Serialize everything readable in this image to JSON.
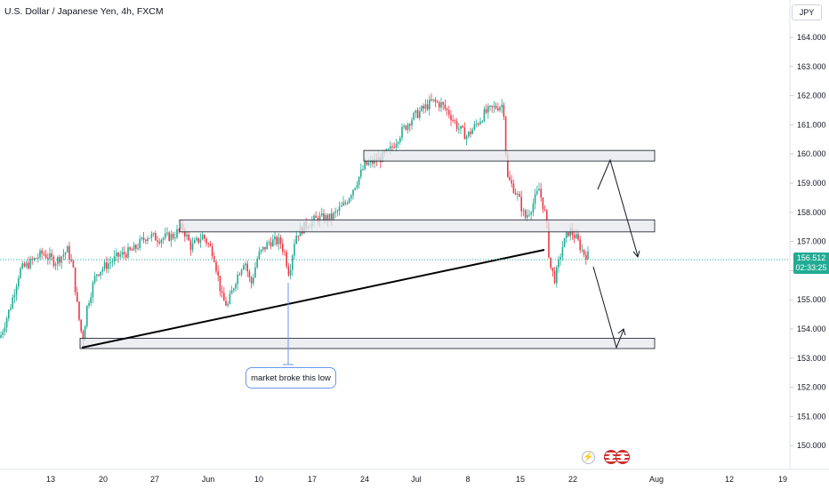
{
  "header": {
    "title": "U.S. Dollar / Japanese Yen, 4h, FXCM"
  },
  "currency_badge": "JPY",
  "price_tag": {
    "price": "156.512",
    "countdown": "02:33:25"
  },
  "annotation": {
    "text": "market broke this low"
  },
  "colors": {
    "up": "#22ab94",
    "down": "#f23645",
    "accent": "#2962ff",
    "trendline": "#000000"
  },
  "icons": [
    "lightning-icon",
    "us-flag-icon",
    "us-flag-icon"
  ],
  "chart_data": {
    "type": "candlestick",
    "symbol": "U.S. Dollar / Japanese Yen",
    "interval": "4h",
    "source": "FXCM",
    "ylim": [
      149.7,
      164.6
    ],
    "yticks": [
      "164.000",
      "163.000",
      "162.000",
      "161.000",
      "160.000",
      "159.000",
      "158.000",
      "157.000",
      "156.000",
      "155.000",
      "154.000",
      "153.000",
      "152.000",
      "151.000",
      "150.000"
    ],
    "xticks": [
      "13",
      "20",
      "27",
      "Jun",
      "10",
      "17",
      "24",
      "Jul",
      "8",
      "15",
      "22",
      "Aug",
      "12",
      "19"
    ],
    "path": [
      [
        0,
        153.7
      ],
      [
        12,
        154.8
      ],
      [
        22,
        156.0
      ],
      [
        35,
        156.3
      ],
      [
        48,
        156.6
      ],
      [
        62,
        156.3
      ],
      [
        76,
        156.7
      ],
      [
        82,
        156.1
      ],
      [
        88,
        154.5
      ],
      [
        93,
        153.6
      ],
      [
        98,
        154.8
      ],
      [
        108,
        155.9
      ],
      [
        120,
        156.2
      ],
      [
        133,
        156.5
      ],
      [
        150,
        156.7
      ],
      [
        165,
        157.2
      ],
      [
        180,
        157.1
      ],
      [
        195,
        157.2
      ],
      [
        205,
        157.5
      ],
      [
        215,
        156.8
      ],
      [
        228,
        157.2
      ],
      [
        240,
        156.6
      ],
      [
        250,
        155.0
      ],
      [
        256,
        154.8
      ],
      [
        265,
        155.7
      ],
      [
        275,
        156.4
      ],
      [
        282,
        155.5
      ],
      [
        290,
        156.5
      ],
      [
        303,
        157.0
      ],
      [
        315,
        157.0
      ],
      [
        320,
        156.6
      ],
      [
        325,
        155.9
      ],
      [
        332,
        157.2
      ],
      [
        345,
        157.6
      ],
      [
        358,
        157.8
      ],
      [
        372,
        157.8
      ],
      [
        388,
        158.3
      ],
      [
        400,
        159.0
      ],
      [
        410,
        159.6
      ],
      [
        425,
        159.8
      ],
      [
        438,
        160.1
      ],
      [
        450,
        160.7
      ],
      [
        462,
        161.2
      ],
      [
        474,
        161.5
      ],
      [
        486,
        161.8
      ],
      [
        496,
        161.7
      ],
      [
        505,
        161.4
      ],
      [
        515,
        160.9
      ],
      [
        525,
        160.6
      ],
      [
        535,
        161.0
      ],
      [
        545,
        161.4
      ],
      [
        556,
        161.6
      ],
      [
        566,
        161.7
      ],
      [
        570,
        159.2
      ],
      [
        578,
        158.8
      ],
      [
        584,
        158.4
      ],
      [
        590,
        157.8
      ],
      [
        598,
        158.2
      ],
      [
        606,
        158.8
      ],
      [
        614,
        157.8
      ],
      [
        618,
        156.2
      ],
      [
        624,
        155.7
      ],
      [
        632,
        156.8
      ],
      [
        640,
        157.4
      ],
      [
        648,
        157.1
      ],
      [
        656,
        156.6
      ],
      [
        662,
        156.5
      ]
    ],
    "support_zones": [
      {
        "from_x": "Jul 1",
        "to_x": "Jul 31",
        "low": 159.85,
        "high": 160.0
      },
      {
        "from_x": "May 28",
        "to_x": "Jul 31",
        "low": 157.42,
        "high": 157.62
      },
      {
        "from_x": "May 16",
        "to_x": "Jul 31",
        "low": 153.42,
        "high": 153.56
      }
    ],
    "trendline": {
      "from": [
        "May 16",
        153.5
      ],
      "to": [
        "Jul 18",
        156.8
      ]
    },
    "last_price": 156.512
  }
}
